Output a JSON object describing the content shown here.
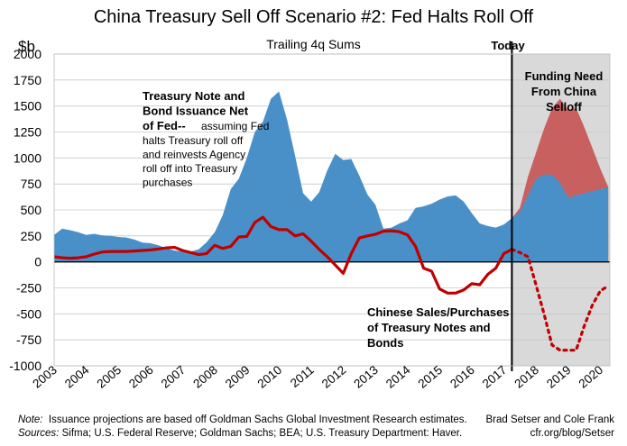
{
  "chart_data": {
    "type": "area",
    "title": "China Treasury Sell Off Scenario #2: Fed Halts Roll Off",
    "subtitle": "Trailing 4q Sums",
    "ylabel": "$b",
    "ylim": [
      -1000,
      2000
    ],
    "yticks": [
      2000,
      1750,
      1500,
      1250,
      1000,
      750,
      500,
      250,
      0,
      -250,
      -500,
      -750,
      -1000
    ],
    "xlim": [
      2003,
      2020.3
    ],
    "xticks": [
      "2003",
      "2004",
      "2005",
      "2006",
      "2007",
      "2008",
      "2009",
      "2010",
      "2011",
      "2012",
      "2013",
      "2014",
      "2015",
      "2016",
      "2017",
      "2018",
      "2019",
      "2020"
    ],
    "today_label": "Today",
    "today_x": 2017.25,
    "grid": true,
    "series": [
      {
        "name": "Treasury Note and Bond Issuance Net of Fed",
        "kind": "area",
        "color": "#4a90c8",
        "points": [
          [
            2003.0,
            260
          ],
          [
            2003.25,
            320
          ],
          [
            2003.5,
            305
          ],
          [
            2003.75,
            285
          ],
          [
            2004.0,
            260
          ],
          [
            2004.25,
            270
          ],
          [
            2004.5,
            255
          ],
          [
            2004.75,
            250
          ],
          [
            2005.0,
            240
          ],
          [
            2005.25,
            235
          ],
          [
            2005.5,
            215
          ],
          [
            2005.75,
            185
          ],
          [
            2006.0,
            180
          ],
          [
            2006.25,
            160
          ],
          [
            2006.5,
            130
          ],
          [
            2006.75,
            110
          ],
          [
            2007.0,
            100
          ],
          [
            2007.25,
            100
          ],
          [
            2007.5,
            120
          ],
          [
            2007.75,
            190
          ],
          [
            2008.0,
            285
          ],
          [
            2008.25,
            450
          ],
          [
            2008.5,
            700
          ],
          [
            2008.75,
            800
          ],
          [
            2009.0,
            1000
          ],
          [
            2009.25,
            1250
          ],
          [
            2009.5,
            1350
          ],
          [
            2009.75,
            1570
          ],
          [
            2010.0,
            1640
          ],
          [
            2010.25,
            1370
          ],
          [
            2010.5,
            1020
          ],
          [
            2010.75,
            660
          ],
          [
            2011.0,
            580
          ],
          [
            2011.25,
            670
          ],
          [
            2011.5,
            880
          ],
          [
            2011.75,
            1040
          ],
          [
            2012.0,
            980
          ],
          [
            2012.25,
            990
          ],
          [
            2012.5,
            830
          ],
          [
            2012.75,
            650
          ],
          [
            2013.0,
            550
          ],
          [
            2013.25,
            320
          ],
          [
            2013.5,
            330
          ],
          [
            2013.75,
            370
          ],
          [
            2014.0,
            400
          ],
          [
            2014.25,
            520
          ],
          [
            2014.5,
            535
          ],
          [
            2014.75,
            560
          ],
          [
            2015.0,
            600
          ],
          [
            2015.25,
            630
          ],
          [
            2015.5,
            640
          ],
          [
            2015.75,
            580
          ],
          [
            2016.0,
            470
          ],
          [
            2016.25,
            370
          ],
          [
            2016.5,
            345
          ],
          [
            2016.75,
            330
          ],
          [
            2017.0,
            360
          ],
          [
            2017.25,
            420
          ],
          [
            2017.5,
            480
          ],
          [
            2017.75,
            640
          ],
          [
            2018.0,
            800
          ],
          [
            2018.25,
            840
          ],
          [
            2018.5,
            840
          ],
          [
            2018.75,
            760
          ],
          [
            2019.0,
            620
          ],
          [
            2019.25,
            640
          ],
          [
            2019.5,
            660
          ],
          [
            2019.75,
            680
          ],
          [
            2020.0,
            700
          ],
          [
            2020.25,
            720
          ]
        ]
      },
      {
        "name": "Funding Need From China Selloff",
        "kind": "area",
        "color": "#c96060",
        "points": [
          [
            2017.25,
            420
          ],
          [
            2017.5,
            520
          ],
          [
            2017.75,
            820
          ],
          [
            2018.0,
            1050
          ],
          [
            2018.25,
            1280
          ],
          [
            2018.5,
            1480
          ],
          [
            2018.75,
            1570
          ],
          [
            2019.0,
            1460
          ],
          [
            2019.25,
            1480
          ],
          [
            2019.5,
            1300
          ],
          [
            2019.75,
            1100
          ],
          [
            2020.0,
            900
          ],
          [
            2020.25,
            720
          ]
        ]
      },
      {
        "name": "Chinese Sales/Purchases of Treasury Notes and Bonds",
        "kind": "line",
        "color": "#c00000",
        "points": [
          [
            2003.0,
            50
          ],
          [
            2003.25,
            40
          ],
          [
            2003.5,
            35
          ],
          [
            2003.75,
            40
          ],
          [
            2004.0,
            50
          ],
          [
            2004.25,
            75
          ],
          [
            2004.5,
            95
          ],
          [
            2004.75,
            100
          ],
          [
            2005.0,
            100
          ],
          [
            2005.25,
            100
          ],
          [
            2005.5,
            105
          ],
          [
            2005.75,
            110
          ],
          [
            2006.0,
            115
          ],
          [
            2006.25,
            125
          ],
          [
            2006.5,
            135
          ],
          [
            2006.75,
            140
          ],
          [
            2007.0,
            110
          ],
          [
            2007.25,
            90
          ],
          [
            2007.5,
            70
          ],
          [
            2007.75,
            80
          ],
          [
            2008.0,
            160
          ],
          [
            2008.25,
            130
          ],
          [
            2008.5,
            150
          ],
          [
            2008.75,
            240
          ],
          [
            2009.0,
            245
          ],
          [
            2009.25,
            380
          ],
          [
            2009.5,
            430
          ],
          [
            2009.75,
            340
          ],
          [
            2010.0,
            310
          ],
          [
            2010.25,
            310
          ],
          [
            2010.5,
            250
          ],
          [
            2010.75,
            270
          ],
          [
            2011.0,
            200
          ],
          [
            2011.25,
            120
          ],
          [
            2011.5,
            50
          ],
          [
            2011.75,
            -30
          ],
          [
            2012.0,
            -110
          ],
          [
            2012.25,
            80
          ],
          [
            2012.5,
            230
          ],
          [
            2012.75,
            250
          ],
          [
            2013.0,
            265
          ],
          [
            2013.25,
            295
          ],
          [
            2013.5,
            300
          ],
          [
            2013.75,
            290
          ],
          [
            2014.0,
            260
          ],
          [
            2014.25,
            150
          ],
          [
            2014.5,
            -60
          ],
          [
            2014.75,
            -90
          ],
          [
            2015.0,
            -260
          ],
          [
            2015.25,
            -300
          ],
          [
            2015.5,
            -300
          ],
          [
            2015.75,
            -270
          ],
          [
            2016.0,
            -210
          ],
          [
            2016.25,
            -220
          ],
          [
            2016.5,
            -120
          ],
          [
            2016.75,
            -60
          ],
          [
            2017.0,
            80
          ],
          [
            2017.25,
            120
          ]
        ]
      },
      {
        "name": "Chinese Sales projection",
        "kind": "dotted-line",
        "color": "#c00000",
        "points": [
          [
            2017.25,
            120
          ],
          [
            2017.5,
            90
          ],
          [
            2017.75,
            50
          ],
          [
            2018.0,
            -220
          ],
          [
            2018.25,
            -500
          ],
          [
            2018.5,
            -800
          ],
          [
            2018.75,
            -850
          ],
          [
            2019.0,
            -850
          ],
          [
            2019.25,
            -850
          ],
          [
            2019.5,
            -620
          ],
          [
            2019.75,
            -420
          ],
          [
            2020.0,
            -280
          ],
          [
            2020.25,
            -230
          ]
        ]
      }
    ],
    "annotations": {
      "issuance_bold": [
        "Treasury Note and",
        "Bond Issuance Net",
        "of Fed--"
      ],
      "issuance_normal_first": "assuming Fed",
      "issuance_normal": [
        "halts Treasury roll off",
        "and reinvests Agency",
        "roll off into Treasury",
        "purchases"
      ],
      "funding": [
        "Funding Need",
        "From China",
        "Selloff"
      ],
      "china": [
        "Chinese Sales/Purchases",
        "of Treasury Notes and",
        "Bonds"
      ]
    }
  },
  "footer": {
    "note_label": "Note:",
    "note_text": "Issuance projections are based off Goldman Sachs Global Investment Research estimates.",
    "sources_label": "Sources:",
    "sources_text": "Sifma; U.S. Federal Reserve; Goldman Sachs; BEA; U.S. Treasury Department: Haver.",
    "credit_1": "Brad Setser and Cole Frank",
    "credit_2": "cfr.org/blog/Setser"
  }
}
